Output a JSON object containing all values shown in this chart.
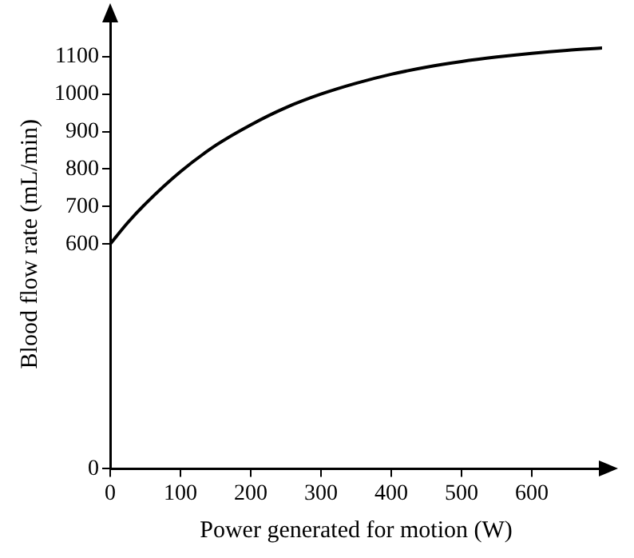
{
  "chart_data": {
    "type": "line",
    "xlabel": "Power generated for motion (W)",
    "ylabel": "Blood flow rate (mL/min)",
    "x": [
      0,
      25,
      50,
      100,
      150,
      200,
      250,
      300,
      350,
      400,
      450,
      500,
      550,
      600,
      650,
      700
    ],
    "series": [
      {
        "color": "#000000",
        "values": [
          600,
          657,
          707,
          793,
          863,
          918,
          964,
          1000,
          1029,
          1053,
          1072,
          1087,
          1099,
          1109,
          1117,
          1123
        ]
      }
    ],
    "xlim": [
      0,
      700
    ],
    "ylim": [
      0,
      1200
    ],
    "xticks": [
      0,
      100,
      200,
      300,
      400,
      500,
      600
    ],
    "yticks": [
      0,
      600,
      700,
      800,
      900,
      1000,
      1100
    ],
    "grid": false,
    "legend": false,
    "marker": "none",
    "line_style": "solid"
  }
}
